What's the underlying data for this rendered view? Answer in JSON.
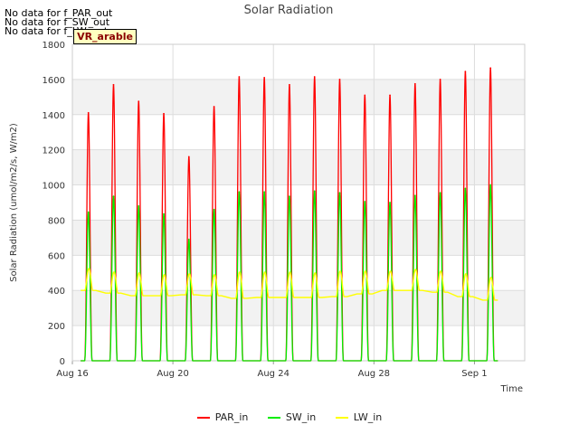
{
  "notes": [
    "No data for f_PAR_out",
    "No data for f_SW_out",
    "No data for f_LW_out"
  ],
  "site_label": "VR_arable",
  "chart_data": {
    "type": "line",
    "title": "Solar Radiation",
    "xlabel": "Time",
    "ylabel": "Solar Radiation (umol/m2/s, W/m2)",
    "x_start": "2016-08-16",
    "days": 18,
    "xlim": [
      "2016-08-16",
      "2016-09-03"
    ],
    "ylim": [
      0,
      1800
    ],
    "yticks": [
      0,
      200,
      400,
      600,
      800,
      1000,
      1200,
      1400,
      1600,
      1800
    ],
    "xticks": [
      {
        "date": "2016-08-16",
        "label": "Aug 16"
      },
      {
        "date": "2016-08-20",
        "label": "Aug 20"
      },
      {
        "date": "2016-08-24",
        "label": "Aug 24"
      },
      {
        "date": "2016-08-28",
        "label": "Aug 28"
      },
      {
        "date": "2016-09-01",
        "label": "Sep 1"
      }
    ],
    "grid": true,
    "legend_position": "bottom",
    "series": [
      {
        "name": "PAR_in",
        "color": "#ff0000",
        "daily_peaks": [
          1410,
          1570,
          1475,
          1405,
          1160,
          1445,
          1615,
          1610,
          1570,
          1615,
          1600,
          1510,
          1510,
          1575,
          1600,
          1645,
          1665
        ]
      },
      {
        "name": "SW_in",
        "color": "#00ee00",
        "daily_peaks": [
          845,
          935,
          880,
          835,
          690,
          860,
          960,
          960,
          935,
          965,
          955,
          905,
          900,
          940,
          955,
          980,
          1000
        ]
      },
      {
        "name": "LW_in",
        "color": "#ffff00",
        "daily_min": [
          400,
          385,
          370,
          370,
          375,
          370,
          355,
          360,
          360,
          360,
          365,
          380,
          400,
          400,
          390,
          365,
          345
        ],
        "daily_max": [
          525,
          505,
          500,
          490,
          495,
          490,
          505,
          505,
          505,
          500,
          510,
          510,
          510,
          520,
          510,
          495,
          475
        ]
      }
    ]
  }
}
